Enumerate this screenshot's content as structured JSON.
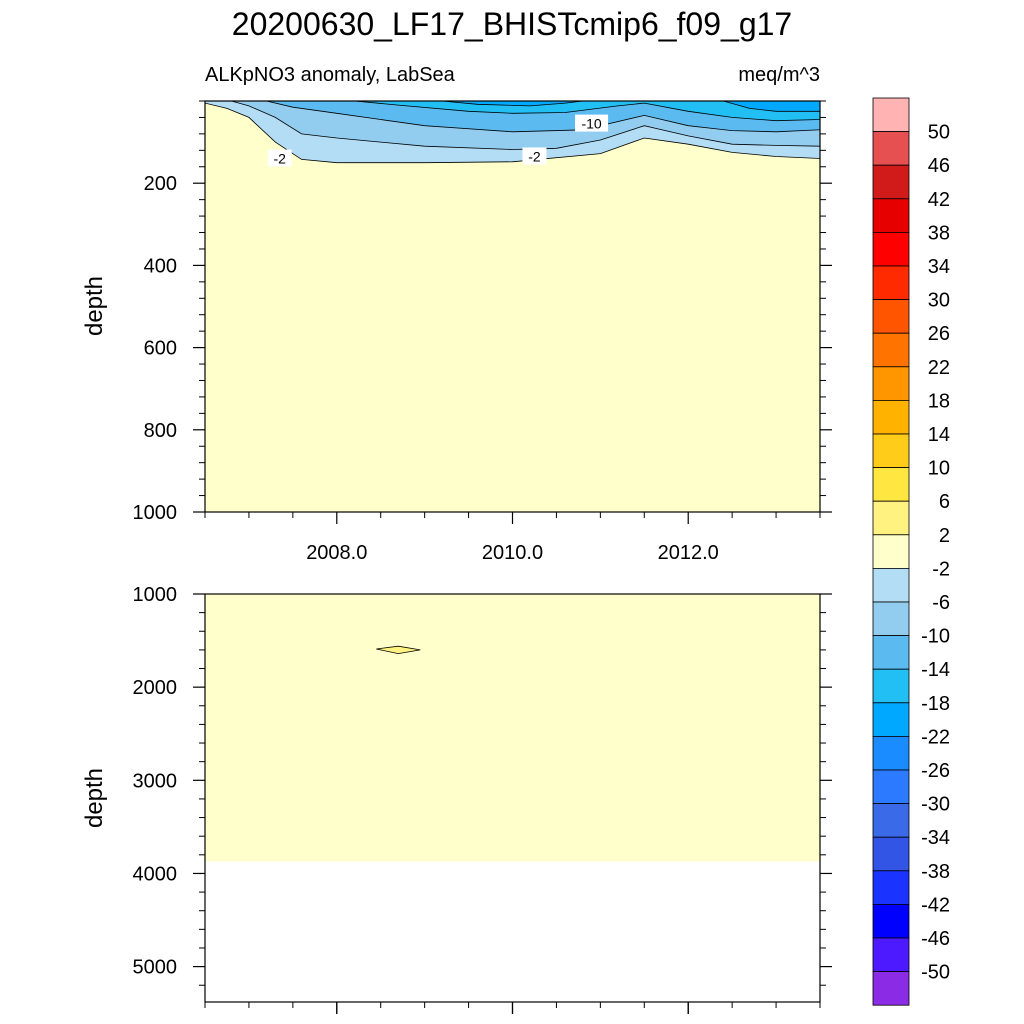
{
  "figure": {
    "title": "20200630_LF17_BHISTcmip6_f09_g17"
  },
  "chart_data": [
    {
      "type": "heatmap",
      "name": "upper-panel",
      "subtitle_left": "ALKpNO3 anomaly, LabSea",
      "subtitle_right": "meq/m^3",
      "ylabel": "depth",
      "ylim": [
        1000,
        0
      ],
      "yticks": [
        "200",
        "400",
        "600",
        "800",
        "1000"
      ],
      "ytick_values": [
        200,
        400,
        600,
        800,
        1000
      ],
      "xlim": [
        2006.5,
        2013.5
      ],
      "xticks": [
        "2008.0",
        "2010.0",
        "2012.0"
      ],
      "xtick_values": [
        2008,
        2010,
        2012
      ],
      "background_fill": "#ffffcc",
      "contour_fills": [
        {
          "level": "-6 to -2",
          "color": "#b3dcf5",
          "boundary_depth": [
            [
              2006.5,
              5
            ],
            [
              2006.75,
              18
            ],
            [
              2007.0,
              40
            ],
            [
              2007.3,
              100
            ],
            [
              2007.6,
              142
            ],
            [
              2008.0,
              150
            ],
            [
              2009.0,
              150
            ],
            [
              2010.0,
              148
            ],
            [
              2011.0,
              128
            ],
            [
              2011.5,
              90
            ],
            [
              2012.0,
              105
            ],
            [
              2012.5,
              125
            ],
            [
              2013.0,
              135
            ],
            [
              2013.5,
              140
            ]
          ]
        },
        {
          "level": "-10 to -6",
          "color": "#92cdef",
          "boundary_depth": [
            [
              2006.8,
              0
            ],
            [
              2007.0,
              12
            ],
            [
              2007.3,
              40
            ],
            [
              2007.6,
              80
            ],
            [
              2008.0,
              90
            ],
            [
              2008.5,
              100
            ],
            [
              2009.0,
              110
            ],
            [
              2010.0,
              118
            ],
            [
              2010.5,
              115
            ],
            [
              2011.0,
              95
            ],
            [
              2011.5,
              60
            ],
            [
              2012.0,
              85
            ],
            [
              2012.5,
              105
            ],
            [
              2013.0,
              108
            ],
            [
              2013.5,
              110
            ]
          ]
        },
        {
          "level": "-14 to -10",
          "color": "#5bbbf0",
          "boundary_depth": [
            [
              2007.2,
              0
            ],
            [
              2007.5,
              15
            ],
            [
              2008.0,
              30
            ],
            [
              2008.5,
              45
            ],
            [
              2009.0,
              60
            ],
            [
              2010.0,
              75
            ],
            [
              2010.8,
              70
            ],
            [
              2011.5,
              35
            ],
            [
              2012.0,
              60
            ],
            [
              2012.5,
              72
            ],
            [
              2013.0,
              75
            ],
            [
              2013.5,
              70
            ]
          ]
        },
        {
          "level": "-18 to -14",
          "color": "#22bff5",
          "boundary_depth": [
            [
              2008.2,
              0
            ],
            [
              2008.7,
              10
            ],
            [
              2009.5,
              25
            ],
            [
              2010.0,
              30
            ],
            [
              2010.6,
              28
            ],
            [
              2011.2,
              12
            ],
            [
              2011.5,
              5
            ],
            [
              2012.0,
              25
            ],
            [
              2012.5,
              40
            ],
            [
              2013.0,
              48
            ],
            [
              2013.5,
              45
            ]
          ]
        },
        {
          "level": "-22 to -18",
          "color": "#00a9ff",
          "boundary_depth": [
            [
              2009.2,
              0
            ],
            [
              2009.6,
              8
            ],
            [
              2010.2,
              12
            ],
            [
              2010.6,
              5
            ],
            [
              2010.8,
              0
            ]
          ]
        },
        {
          "level": "-22 to -18 (right)",
          "color": "#00a9ff",
          "boundary_depth": [
            [
              2012.4,
              0
            ],
            [
              2012.7,
              18
            ],
            [
              2013.0,
              25
            ],
            [
              2013.5,
              25
            ]
          ]
        }
      ],
      "contour_labels": [
        {
          "text": "-10",
          "x": 2010.9,
          "depth": 55
        },
        {
          "text": "-2",
          "x": 2007.35,
          "depth": 140
        },
        {
          "text": "-2",
          "x": 2010.25,
          "depth": 135
        }
      ]
    },
    {
      "type": "heatmap",
      "name": "lower-panel",
      "ylabel": "depth",
      "ylim": [
        5380,
        1000
      ],
      "yticks": [
        "1000",
        "2000",
        "3000",
        "4000",
        "5000"
      ],
      "ytick_values": [
        1000,
        2000,
        3000,
        4000,
        5000
      ],
      "xlim": [
        2006.5,
        2013.5
      ],
      "xtick_values": [
        2008,
        2010,
        2012
      ],
      "background_fill": "#ffffcc",
      "fill_bottom_depth": 3870,
      "contour_fills": [
        {
          "level": "2 to 6",
          "color": "#fff281",
          "boundary_depth": [
            [
              2008.45,
              1590
            ],
            [
              2008.7,
              1560
            ],
            [
              2008.95,
              1600
            ],
            [
              2008.7,
              1640
            ],
            [
              2008.45,
              1590
            ]
          ]
        }
      ]
    }
  ],
  "colorbar": {
    "labels": [
      "50",
      "46",
      "42",
      "38",
      "34",
      "30",
      "26",
      "22",
      "18",
      "14",
      "10",
      "6",
      "2",
      "-2",
      "-6",
      "-10",
      "-14",
      "-18",
      "-22",
      "-26",
      "-30",
      "-34",
      "-38",
      "-42",
      "-46",
      "-50"
    ],
    "colors": [
      "#ffb3b3",
      "#e65050",
      "#d11a1a",
      "#e60000",
      "#ff0000",
      "#ff2a00",
      "#ff5500",
      "#ff7300",
      "#ff9600",
      "#ffb300",
      "#ffcc1a",
      "#ffe640",
      "#fff281",
      "#ffffcc",
      "#b3dcf5",
      "#92cdef",
      "#5bbbf0",
      "#22bff5",
      "#00a9ff",
      "#1a8cff",
      "#2b7aff",
      "#3a6ae8",
      "#3355e6",
      "#1a33ff",
      "#0000ff",
      "#4d1aff",
      "#8c2be6"
    ]
  }
}
